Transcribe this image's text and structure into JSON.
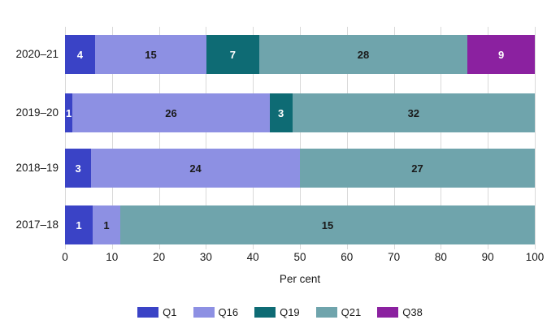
{
  "chart_data": {
    "type": "bar",
    "orientation": "horizontal",
    "stacked": true,
    "normalized_to_100_percent": true,
    "note": "Segment widths are each value's share of the row total; labels show raw values",
    "title": "",
    "xlabel": "Per cent",
    "xlim": [
      0,
      100
    ],
    "x_ticks": [
      0,
      10,
      20,
      30,
      40,
      50,
      60,
      70,
      80,
      90,
      100
    ],
    "grid": true,
    "legend_position": "bottom",
    "categories": [
      "2020–21",
      "2019–20",
      "2018–19",
      "2017–18"
    ],
    "series": [
      {
        "name": "Q1",
        "color": "#3A43C6",
        "label_color": "#ffffff",
        "values": [
          4,
          1,
          3,
          1
        ]
      },
      {
        "name": "Q16",
        "color": "#8D90E3",
        "label_color": "#1a1a1a",
        "values": [
          15,
          26,
          24,
          1
        ]
      },
      {
        "name": "Q19",
        "color": "#0E6B74",
        "label_color": "#ffffff",
        "values": [
          7,
          3,
          0,
          0
        ]
      },
      {
        "name": "Q21",
        "color": "#6FA4AC",
        "label_color": "#1a1a1a",
        "values": [
          28,
          32,
          27,
          15
        ]
      },
      {
        "name": "Q38",
        "color": "#8B21A0",
        "label_color": "#ffffff",
        "values": [
          9,
          0,
          0,
          0
        ]
      }
    ],
    "row_totals": [
      63,
      62,
      54,
      17
    ]
  },
  "colors": {
    "background": "#ffffff",
    "gridline": "#d9d9d9",
    "text": "#1a1a1a"
  }
}
